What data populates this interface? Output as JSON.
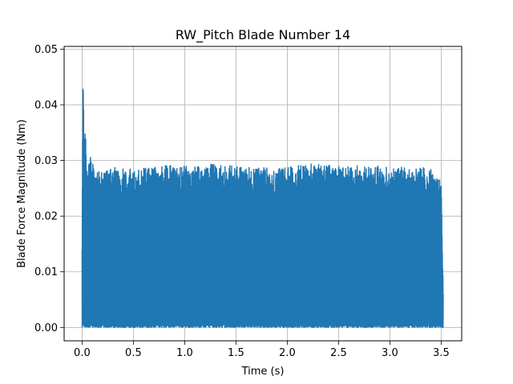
{
  "chart_data": {
    "type": "line",
    "title": "RW_Pitch Blade Number 14",
    "xlabel": "Time (s)",
    "ylabel": "Blade Force Magnitude (Nm)",
    "xlim": [
      -0.175,
      3.7
    ],
    "ylim": [
      -0.0024,
      0.0505
    ],
    "xticks": [
      0.0,
      0.5,
      1.0,
      1.5,
      2.0,
      2.5,
      3.0,
      3.5
    ],
    "xtick_labels": [
      "0.0",
      "0.5",
      "1.0",
      "1.5",
      "2.0",
      "2.5",
      "3.0",
      "3.5"
    ],
    "yticks": [
      0.0,
      0.01,
      0.02,
      0.03,
      0.04,
      0.05
    ],
    "ytick_labels": [
      "0.00",
      "0.01",
      "0.02",
      "0.03",
      "0.04",
      "0.05"
    ],
    "grid": true,
    "series_color": "#1f77b4",
    "series": [
      {
        "name": "",
        "x_range": [
          0.0,
          3.52
        ],
        "envelope_max": [
          [
            0.0,
            0.017
          ],
          [
            0.01,
            0.048
          ],
          [
            0.02,
            0.03
          ],
          [
            0.03,
            0.037
          ],
          [
            0.05,
            0.027
          ],
          [
            0.07,
            0.03
          ],
          [
            0.09,
            0.032
          ],
          [
            0.12,
            0.028
          ],
          [
            0.2,
            0.028
          ],
          [
            0.3,
            0.0288
          ],
          [
            0.5,
            0.0285
          ],
          [
            0.7,
            0.029
          ],
          [
            0.9,
            0.0292
          ],
          [
            1.1,
            0.0289
          ],
          [
            1.3,
            0.0295
          ],
          [
            1.5,
            0.029
          ],
          [
            1.7,
            0.0288
          ],
          [
            1.9,
            0.0286
          ],
          [
            2.1,
            0.0292
          ],
          [
            2.3,
            0.0295
          ],
          [
            2.5,
            0.029
          ],
          [
            2.7,
            0.0292
          ],
          [
            2.9,
            0.029
          ],
          [
            3.1,
            0.0289
          ],
          [
            3.3,
            0.0288
          ],
          [
            3.45,
            0.0285
          ],
          [
            3.5,
            0.026
          ],
          [
            3.52,
            0.007
          ]
        ],
        "envelope_min": 0.0
      }
    ]
  }
}
